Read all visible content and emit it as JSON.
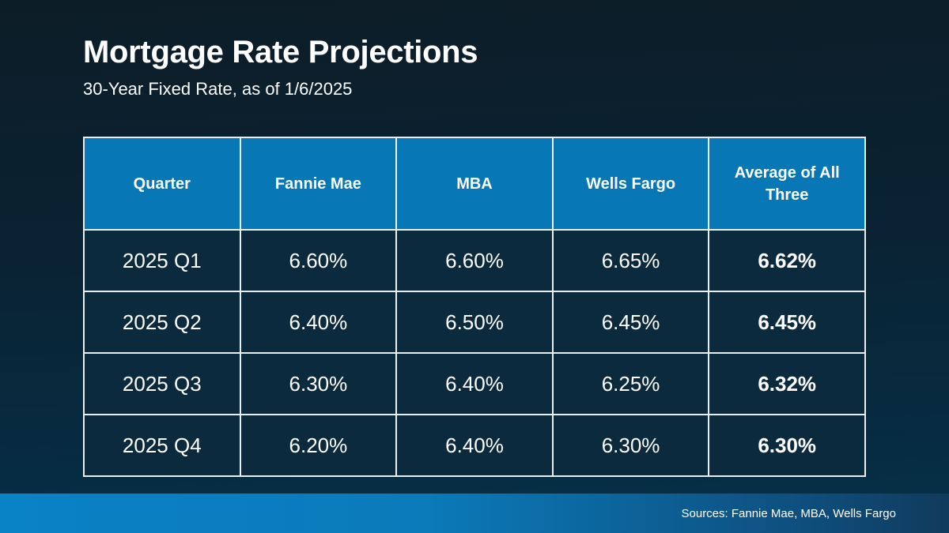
{
  "slide": {
    "title": "Mortgage Rate Projections",
    "subtitle": "30-Year Fixed Rate, as of 1/6/2025"
  },
  "chart_data": {
    "type": "table",
    "title": "Mortgage Rate Projections",
    "subtitle": "30-Year Fixed Rate, as of 1/6/2025",
    "columns": [
      "Quarter",
      "Fannie Mae",
      "MBA",
      "Wells Fargo",
      "Average of All Three"
    ],
    "rows": [
      [
        "2025 Q1",
        "6.60%",
        "6.60%",
        "6.65%",
        "6.62%"
      ],
      [
        "2025 Q2",
        "6.40%",
        "6.50%",
        "6.45%",
        "6.45%"
      ],
      [
        "2025 Q3",
        "6.30%",
        "6.40%",
        "6.25%",
        "6.32%"
      ],
      [
        "2025 Q4",
        "6.20%",
        "6.40%",
        "6.30%",
        "6.30%"
      ]
    ]
  },
  "footer": {
    "sources": "Sources: Fannie Mae, MBA, Wells Fargo"
  },
  "colors": {
    "header_blue": "#0877b6",
    "cell_fill": "#0c2a3e",
    "table_border": "#e9eef2",
    "background_top": "#0d1d27",
    "background_bottom": "#053048",
    "footer_gradient_left": "#0a82c6",
    "footer_gradient_right": "#113a5c",
    "text": "#ffffff"
  }
}
